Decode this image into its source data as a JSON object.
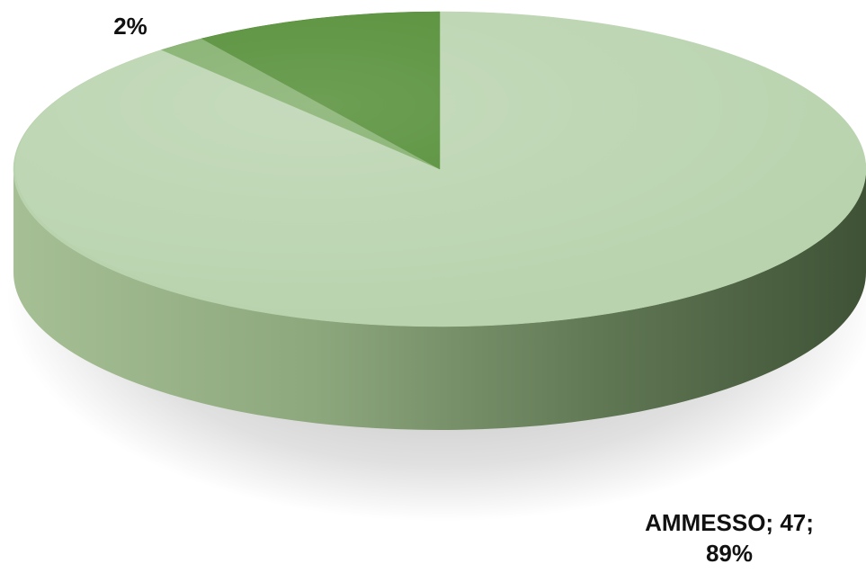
{
  "chart_data": {
    "type": "pie",
    "style": "3d",
    "slices": [
      {
        "value": 47,
        "percent": 89,
        "color": "#b9d3ae",
        "label": "AMMESSO; 47; 89%"
      },
      {
        "value": 1,
        "percent": 2,
        "color": "#7fad68",
        "label": "2%"
      },
      {
        "value": 5,
        "percent": 9,
        "color": "#4e8a2f",
        "label": ""
      }
    ]
  }
}
